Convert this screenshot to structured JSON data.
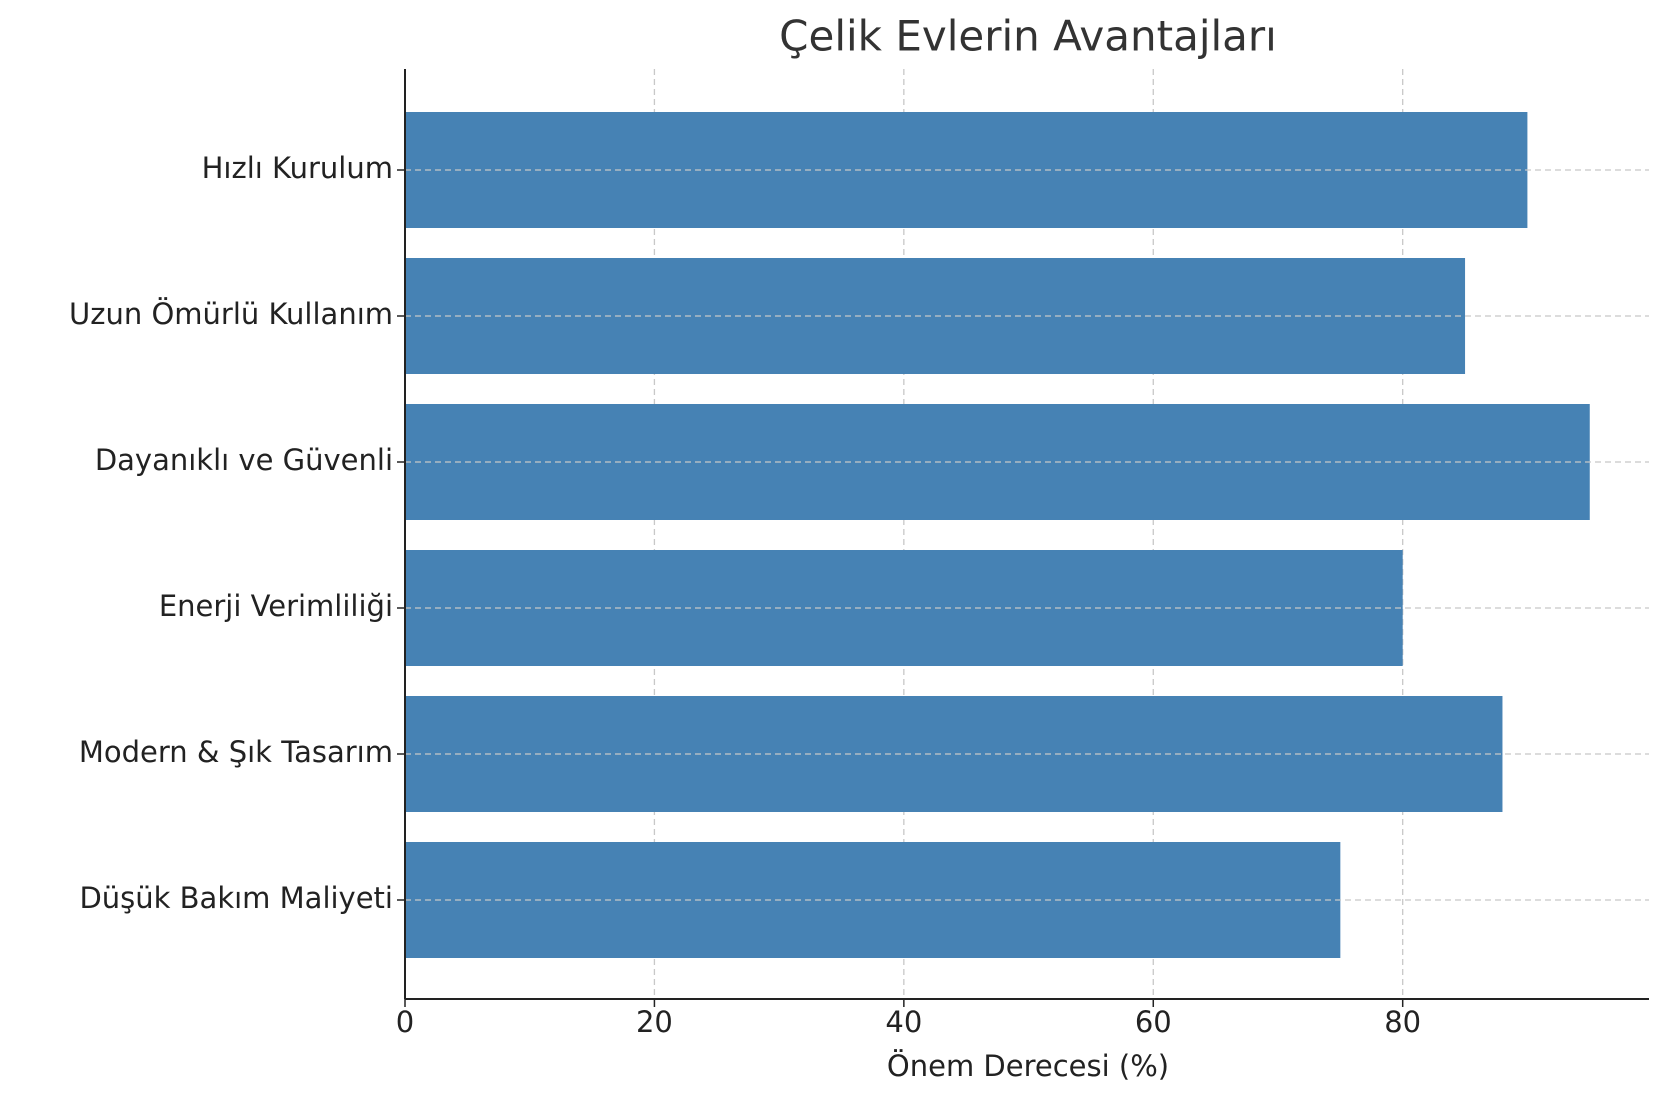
{
  "chart_data": {
    "type": "barh",
    "title": "Çelik Evlerin Avantajları",
    "x_label": "Önem Derecesi (%)",
    "categories": [
      "Hızlı Kurulum",
      "Uzun Ömürlü Kullanım",
      "Dayanıklı ve Güvenli",
      "Enerji Verimliliği",
      "Modern & Şık Tasarım",
      "Düşük Bakım Maliyeti"
    ],
    "values": [
      90,
      85,
      95,
      80,
      88,
      75
    ],
    "color": "#4682b4",
    "xlim": [
      0,
      99.75
    ],
    "xticks": [
      0,
      20,
      40,
      60,
      80
    ],
    "grid": true
  }
}
